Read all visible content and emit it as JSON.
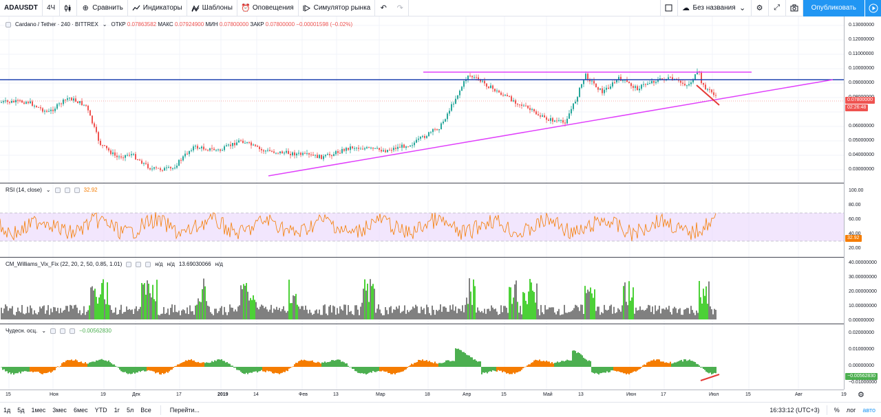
{
  "toolbar": {
    "symbol": "ADAUSDT",
    "interval": "4Ч",
    "compare": "Сравнить",
    "indicators": "Индикаторы",
    "templates": "Шаблоны",
    "alerts": "Оповещения",
    "replay": "Симулятор рынка",
    "layout_name": "Без названия",
    "publish": "Опубликовать"
  },
  "main_legend": {
    "title": "Cardano / Tether · 240 · BITTREX",
    "open_label": "ОТКР",
    "open": "0.07863582",
    "high_label": "МАКС",
    "high": "0.07924900",
    "low_label": "МИН",
    "low": "0.07800000",
    "close_label": "ЗАКР",
    "close": "0.07800000",
    "change": "−0.00001598 (−0.02%)"
  },
  "price_axis": {
    "ticks": [
      "0.13000000",
      "0.12000000",
      "0.11000000",
      "0.10000000",
      "0.09000000",
      "0.08000000",
      "0.06000000",
      "0.05000000",
      "0.04000000",
      "0.03000000"
    ],
    "last_price": "0.07800000",
    "countdown": "02:26:48"
  },
  "rsi": {
    "legend": "RSI (14, close)",
    "value": "32.92",
    "ticks": [
      "100.00",
      "80.00",
      "60.00",
      "40.00",
      "20.00"
    ]
  },
  "wvf": {
    "legend": "CM_Williams_Vix_Fix (22, 20, 2, 50, 0.85, 1.01)",
    "na1": "н/д",
    "na2": "н/д",
    "value": "13.69030066",
    "na3": "н/д",
    "ticks": [
      "40.00000000",
      "30.00000000",
      "20.00000000",
      "10.00000000",
      "0.00000000"
    ]
  },
  "ao": {
    "legend": "Чудесн. осц.",
    "value": "−0.00562830",
    "ticks": [
      "0.02000000",
      "0.01000000",
      "0.00000000",
      "−0.01000000"
    ],
    "tag": "−0.00562830"
  },
  "time_axis": {
    "labels": [
      "15",
      "Ноя",
      "19",
      "Дек",
      "17",
      "2019",
      "14",
      "Фев",
      "13",
      "Мар",
      "18",
      "Апр",
      "15",
      "Май",
      "13",
      "Июн",
      "17",
      "Июл",
      "15",
      "Авг",
      "19"
    ]
  },
  "bottom": {
    "ranges": [
      "1д",
      "5д",
      "1мес",
      "3мес",
      "6мес",
      "YTD",
      "1г",
      "5л",
      "Все"
    ],
    "goto": "Перейти...",
    "clock": "16:33:12 (UTC+3)",
    "percent": "%",
    "log": "лог",
    "auto": "авто"
  },
  "colors": {
    "candle_up": "#26a69a",
    "candle_down": "#ef5350",
    "trendline": "#e040fb",
    "resistance": "#1e40af",
    "rsi_line": "#f57c00",
    "rsi_band": "#e9d5fb",
    "wvf_gray": "#808080",
    "wvf_green": "#4cd137",
    "ao_green": "#4caf50",
    "ao_orange": "#f57c00",
    "accent": "#2196f3"
  }
}
